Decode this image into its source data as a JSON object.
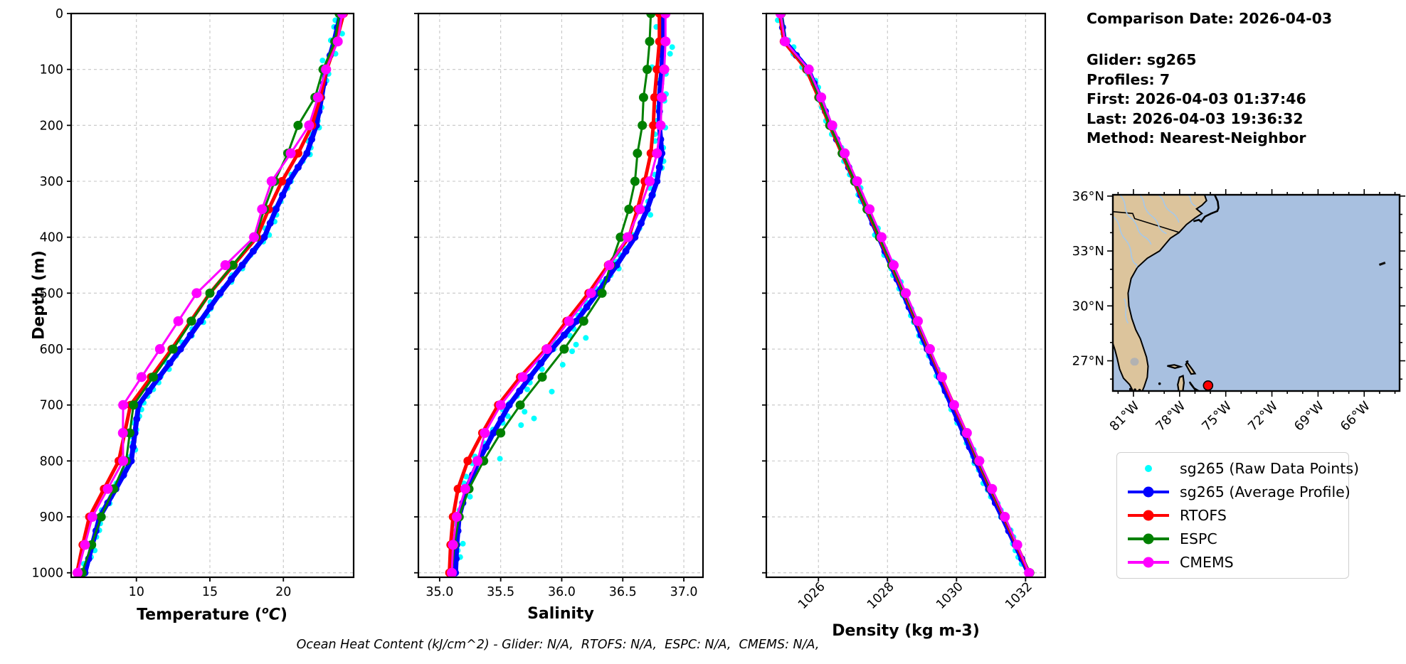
{
  "info_panel": {
    "title": "Comparison Date: 2026-04-03",
    "glider": "Glider: sg265",
    "profiles": "Profiles: 7",
    "first": "First: 2026-04-03 01:37:46",
    "last": "Last: 2026-04-03 19:36:32",
    "method": "Method: Nearest-Neighbor"
  },
  "caption": "Ocean Heat Content (kJ/cm^2) - Glider: N/A,  RTOFS: N/A,  ESPC: N/A,  CMEMS: N/A,",
  "legend": {
    "items": [
      {
        "label": "sg265 (Raw Data Points)",
        "color": "#00ffff",
        "marker": "dot"
      },
      {
        "label": "sg265 (Average Profile)",
        "color": "#0000ff",
        "marker": "line-dot"
      },
      {
        "label": "RTOFS",
        "color": "#ff0000",
        "marker": "line-dot"
      },
      {
        "label": "ESPC",
        "color": "#008000",
        "marker": "line-dot"
      },
      {
        "label": "CMEMS",
        "color": "#ff00ff",
        "marker": "line-dot"
      }
    ]
  },
  "map": {
    "lat_tick_values": [
      36,
      33,
      30,
      27
    ],
    "lat_tick_labels": [
      "36°N",
      "33°N",
      "30°N",
      "27°N"
    ],
    "lon_tick_values": [
      81,
      78,
      75,
      72,
      69,
      66
    ],
    "lon_tick_labels": [
      "81°W",
      "78°W",
      "75°W",
      "72°W",
      "69°W",
      "66°W"
    ],
    "extent": {
      "west_lon_w": 82.34,
      "east_lon_w": 63.7,
      "south_lat_n": 25.35,
      "north_lat_n": 36.07
    },
    "marker": {
      "lon_w": 76.15,
      "lat_n": 25.65,
      "color": "#ff0000"
    },
    "land_color": "#dcc49c",
    "ocean_color": "#a8c0e0",
    "river_color": "#a5c8ea",
    "lake_color": "#b2b2b2"
  },
  "chart_data": {
    "type": "line",
    "orientation": "depth-profile",
    "ylabel": "Depth (m)",
    "ylim": [
      0,
      1008
    ],
    "yticks": [
      0,
      100,
      200,
      300,
      400,
      500,
      600,
      700,
      800,
      900,
      1000
    ],
    "ytick_labels": [
      "0",
      "100",
      "200",
      "300",
      "400",
      "500",
      "600",
      "700",
      "800",
      "900",
      "1000"
    ],
    "depths": [
      0,
      50,
      100,
      150,
      200,
      250,
      300,
      350,
      400,
      450,
      500,
      550,
      600,
      650,
      700,
      750,
      800,
      850,
      900,
      950,
      1000
    ],
    "panels": [
      {
        "name": "temperature",
        "xlabel_parts": {
          "pre": "Temperature (",
          "sup": "o",
          "it": "C",
          "post": ")"
        },
        "xlim": [
          5.56,
          24.78
        ],
        "xticks": [
          10,
          15,
          20
        ],
        "xtick_labels": [
          "10",
          "15",
          "20"
        ],
        "xtick_rotation": 0,
        "raw": {
          "name": "sg265 (Raw Data Points)",
          "color": "#00ffff",
          "amplitude": 0.27
        },
        "series": [
          {
            "name": "sg265 (Average Profile)",
            "color": "#0000ff",
            "width": 7,
            "marker": 5,
            "values": [
              23.9,
              23.45,
              22.9,
              22.6,
              22.25,
              21.6,
              20.4,
              19.5,
              18.7,
              17.2,
              15.7,
              14.35,
              13.0,
              11.55,
              10.15,
              9.9,
              9.65,
              8.6,
              7.5,
              7.0,
              6.5
            ]
          },
          {
            "name": "RTOFS",
            "color": "#ff0000",
            "width": 5,
            "marker": 6,
            "values": [
              24.1,
              23.6,
              22.95,
              22.5,
              21.95,
              21.0,
              19.9,
              19.0,
              18.2,
              16.6,
              15.0,
              13.7,
              12.4,
              11.0,
              9.6,
              9.2,
              8.8,
              7.8,
              6.8,
              6.35,
              5.95
            ]
          },
          {
            "name": "ESPC",
            "color": "#008000",
            "width": 3,
            "marker": 6.5,
            "values": [
              23.8,
              23.5,
              22.7,
              22.15,
              21.0,
              20.3,
              19.4,
              18.7,
              18.1,
              16.55,
              15.0,
              13.75,
              12.5,
              11.15,
              9.8,
              9.55,
              9.3,
              8.45,
              7.6,
              6.95,
              6.3
            ]
          },
          {
            "name": "CMEMS",
            "color": "#ff00ff",
            "width": 3,
            "marker": 7,
            "values": [
              24.0,
              23.7,
              22.9,
              22.35,
              21.75,
              20.5,
              19.2,
              18.55,
              18.0,
              16.05,
              14.1,
              12.85,
              11.6,
              10.35,
              9.1,
              9.08,
              9.1,
              8.05,
              7.0,
              6.5,
              6.0
            ]
          }
        ]
      },
      {
        "name": "salinity",
        "xlabel": "Salinity",
        "xlim": [
          34.826,
          37.157
        ],
        "xticks": [
          35.0,
          35.5,
          36.0,
          36.5,
          37.0
        ],
        "xtick_labels": [
          "35.0",
          "35.5",
          "36.0",
          "36.5",
          "37.0"
        ],
        "xtick_rotation": 0,
        "raw": {
          "name": "sg265 (Raw Data Points)",
          "color": "#00ffff",
          "amplitude": 0.055
        },
        "series": [
          {
            "name": "sg265 (Average Profile)",
            "color": "#0000ff",
            "width": 7,
            "marker": 5,
            "values": [
              36.82,
              36.83,
              36.82,
              36.8,
              36.8,
              36.82,
              36.78,
              36.7,
              36.6,
              36.45,
              36.29,
              36.12,
              35.92,
              35.74,
              35.57,
              35.44,
              35.32,
              35.22,
              35.16,
              35.14,
              35.13
            ]
          },
          {
            "name": "RTOFS",
            "color": "#ff0000",
            "width": 5,
            "marker": 6,
            "values": [
              36.8,
              36.8,
              36.78,
              36.76,
              36.75,
              36.73,
              36.68,
              36.62,
              36.55,
              36.38,
              36.22,
              36.04,
              35.87,
              35.66,
              35.48,
              35.35,
              35.23,
              35.15,
              35.11,
              35.09,
              35.08
            ]
          },
          {
            "name": "ESPC",
            "color": "#008000",
            "width": 3,
            "marker": 6.5,
            "values": [
              36.73,
              36.72,
              36.7,
              36.67,
              36.66,
              36.62,
              36.6,
              36.55,
              36.48,
              36.4,
              36.33,
              36.18,
              36.02,
              35.84,
              35.66,
              35.5,
              35.36,
              35.24,
              35.16,
              35.12,
              35.1
            ]
          },
          {
            "name": "CMEMS",
            "color": "#ff00ff",
            "width": 3,
            "marker": 7,
            "values": [
              36.85,
              36.85,
              36.84,
              36.82,
              36.81,
              36.78,
              36.72,
              36.64,
              36.54,
              36.39,
              36.24,
              36.06,
              35.88,
              35.68,
              35.5,
              35.37,
              35.31,
              35.21,
              35.14,
              35.11,
              35.1
            ]
          }
        ]
      },
      {
        "name": "density",
        "xlabel": "Density (kg m-3)",
        "xlim": [
          1024.49,
          1032.57
        ],
        "xticks": [
          1026,
          1028,
          1030,
          1032
        ],
        "xtick_labels": [
          "1026",
          "1028",
          "1030",
          "1032"
        ],
        "xtick_rotation": 45,
        "raw": {
          "name": "sg265 (Raw Data Points)",
          "color": "#00ffff",
          "amplitude": 0.09
        },
        "series": [
          {
            "name": "sg265 (Average Profile)",
            "color": "#0000ff",
            "width": 7,
            "marker": 5,
            "values": [
              1024.9,
              1025.02,
              1025.7,
              1026.05,
              1026.35,
              1026.7,
              1027.05,
              1027.4,
              1027.75,
              1028.1,
              1028.45,
              1028.8,
              1029.15,
              1029.5,
              1029.85,
              1030.2,
              1030.55,
              1030.93,
              1031.32,
              1031.7,
              1032.08
            ]
          },
          {
            "name": "RTOFS",
            "color": "#ff0000",
            "width": 5,
            "marker": 6,
            "values": [
              1024.88,
              1025.0,
              1025.65,
              1026.0,
              1026.32,
              1026.68,
              1027.04,
              1027.4,
              1027.76,
              1028.12,
              1028.48,
              1028.84,
              1029.2,
              1029.56,
              1029.92,
              1030.28,
              1030.62,
              1030.99,
              1031.37,
              1031.74,
              1032.1
            ]
          },
          {
            "name": "ESPC",
            "color": "#008000",
            "width": 3,
            "marker": 6.5,
            "values": [
              1024.92,
              1025.04,
              1025.68,
              1026.02,
              1026.33,
              1026.69,
              1027.05,
              1027.41,
              1027.77,
              1028.13,
              1028.49,
              1028.85,
              1029.21,
              1029.57,
              1029.93,
              1030.28,
              1030.63,
              1031.0,
              1031.38,
              1031.75,
              1032.12
            ]
          },
          {
            "name": "CMEMS",
            "color": "#ff00ff",
            "width": 3,
            "marker": 7,
            "values": [
              1024.9,
              1025.03,
              1025.72,
              1026.08,
              1026.4,
              1026.76,
              1027.12,
              1027.48,
              1027.83,
              1028.18,
              1028.53,
              1028.88,
              1029.23,
              1029.58,
              1029.93,
              1030.3,
              1030.66,
              1031.03,
              1031.4,
              1031.76,
              1032.1
            ]
          }
        ]
      }
    ]
  }
}
